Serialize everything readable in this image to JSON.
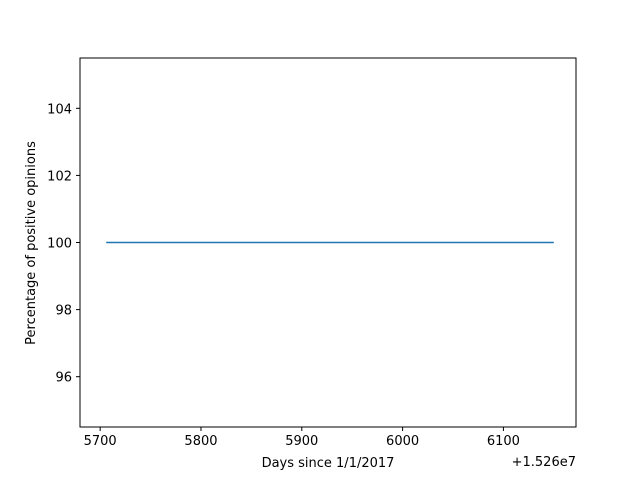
{
  "chart_data": {
    "type": "line",
    "title": "",
    "xlabel": "Days since 1/1/2017",
    "ylabel": "Percentage of positive opinions",
    "x_offset_label": "+1.526e7",
    "xlim": [
      5680,
      6172
    ],
    "ylim": [
      94.5,
      105.5
    ],
    "x_ticks": [
      5700,
      5800,
      5900,
      6000,
      6100
    ],
    "y_ticks": [
      96,
      98,
      100,
      102,
      104
    ],
    "grid": false,
    "series": [
      {
        "color": "#1f77b4",
        "x": [
          5706,
          6150
        ],
        "y": [
          100,
          100
        ]
      }
    ]
  }
}
